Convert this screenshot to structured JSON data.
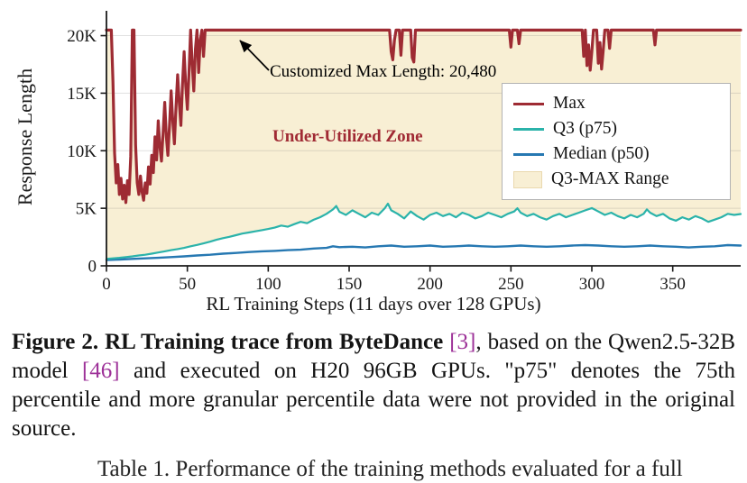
{
  "chart_data": {
    "type": "line",
    "title": "",
    "xlabel": "RL Training Steps (11 days over 128 GPUs)",
    "ylabel": "Response Length",
    "xlim": [
      0,
      392
    ],
    "ylim": [
      0,
      22000
    ],
    "xticks": [
      0,
      50,
      100,
      150,
      200,
      250,
      300,
      350
    ],
    "yticks": [
      {
        "v": 0,
        "label": "0"
      },
      {
        "v": 5000,
        "label": "5K"
      },
      {
        "v": 10000,
        "label": "10K"
      },
      {
        "v": 15000,
        "label": "15K"
      },
      {
        "v": 20000,
        "label": "20K"
      }
    ],
    "grid": "faint-horizontal",
    "annotation": "Customized Max Length: 20,480",
    "max_length": 20480,
    "zone_label": "Under-Utilized Zone",
    "zone_color": "#a02a34",
    "range_fill": "#f8efd4",
    "fill_between": [
      "Q3 (p75)",
      "Max"
    ],
    "legend_position": "upper-right",
    "legend": [
      {
        "label": "Max",
        "type": "line",
        "color": "#9e2b33"
      },
      {
        "label": "Q3 (p75)",
        "type": "line",
        "color": "#2bb3aa"
      },
      {
        "label": "Median (p50)",
        "type": "line",
        "color": "#2678b2"
      },
      {
        "label": "Q3-MAX Range",
        "type": "patch",
        "color": "#f8efd4"
      }
    ],
    "series": [
      {
        "name": "Max",
        "color": "#9e2b33",
        "width": 3.2,
        "points": [
          [
            0,
            20480
          ],
          [
            3,
            20480
          ],
          [
            4,
            16000
          ],
          [
            5,
            9800
          ],
          [
            6,
            7200
          ],
          [
            7,
            8800
          ],
          [
            8,
            6200
          ],
          [
            9,
            7600
          ],
          [
            10,
            5800
          ],
          [
            11,
            7000
          ],
          [
            12,
            5500
          ],
          [
            13,
            7400
          ],
          [
            14,
            6200
          ],
          [
            15,
            9500
          ],
          [
            16,
            20480
          ],
          [
            17,
            20480
          ],
          [
            18,
            10500
          ],
          [
            19,
            7200
          ],
          [
            20,
            6200
          ],
          [
            21,
            7800
          ],
          [
            22,
            6400
          ],
          [
            23,
            5700
          ],
          [
            24,
            7200
          ],
          [
            25,
            6300
          ],
          [
            26,
            8600
          ],
          [
            27,
            7100
          ],
          [
            28,
            9600
          ],
          [
            29,
            8100
          ],
          [
            30,
            11200
          ],
          [
            31,
            9200
          ],
          [
            32,
            12600
          ],
          [
            33,
            10400
          ],
          [
            34,
            9100
          ],
          [
            35,
            11600
          ],
          [
            36,
            14200
          ],
          [
            37,
            11200
          ],
          [
            38,
            9600
          ],
          [
            39,
            12200
          ],
          [
            40,
            15200
          ],
          [
            41,
            12600
          ],
          [
            42,
            10600
          ],
          [
            43,
            13800
          ],
          [
            44,
            16600
          ],
          [
            45,
            14200
          ],
          [
            46,
            12200
          ],
          [
            47,
            15800
          ],
          [
            48,
            18600
          ],
          [
            49,
            15600
          ],
          [
            50,
            13600
          ],
          [
            51,
            16800
          ],
          [
            52,
            20480
          ],
          [
            53,
            17600
          ],
          [
            54,
            15200
          ],
          [
            55,
            18800
          ],
          [
            56,
            20480
          ],
          [
            57,
            16800
          ],
          [
            58,
            19600
          ],
          [
            59,
            20480
          ],
          [
            60,
            18200
          ],
          [
            61,
            20480
          ],
          [
            64,
            20480
          ],
          [
            175,
            20480
          ],
          [
            176,
            18600
          ],
          [
            177,
            17900
          ],
          [
            178,
            19600
          ],
          [
            179,
            20480
          ],
          [
            181,
            20480
          ],
          [
            182,
            18300
          ],
          [
            183,
            20480
          ],
          [
            188,
            20480
          ],
          [
            189,
            18100
          ],
          [
            190,
            17700
          ],
          [
            191,
            20480
          ],
          [
            249,
            20480
          ],
          [
            250,
            19000
          ],
          [
            251,
            20480
          ],
          [
            254,
            20480
          ],
          [
            255,
            19300
          ],
          [
            256,
            20480
          ],
          [
            294,
            20480
          ],
          [
            295,
            18200
          ],
          [
            296,
            20480
          ],
          [
            297,
            17400
          ],
          [
            298,
            19200
          ],
          [
            299,
            17000
          ],
          [
            300,
            18600
          ],
          [
            301,
            20480
          ],
          [
            303,
            20480
          ],
          [
            304,
            17600
          ],
          [
            305,
            19400
          ],
          [
            306,
            17100
          ],
          [
            307,
            18700
          ],
          [
            308,
            20480
          ],
          [
            310,
            20480
          ],
          [
            311,
            18900
          ],
          [
            312,
            20480
          ],
          [
            338,
            20480
          ],
          [
            339,
            19200
          ],
          [
            340,
            20480
          ],
          [
            392,
            20480
          ]
        ]
      },
      {
        "name": "Q3 (p75)",
        "color": "#2bb3aa",
        "width": 2.2,
        "points": [
          [
            0,
            600
          ],
          [
            4,
            650
          ],
          [
            8,
            700
          ],
          [
            12,
            760
          ],
          [
            16,
            820
          ],
          [
            20,
            900
          ],
          [
            24,
            960
          ],
          [
            28,
            1060
          ],
          [
            32,
            1160
          ],
          [
            36,
            1260
          ],
          [
            40,
            1360
          ],
          [
            44,
            1460
          ],
          [
            48,
            1560
          ],
          [
            52,
            1700
          ],
          [
            56,
            1820
          ],
          [
            60,
            1950
          ],
          [
            64,
            2100
          ],
          [
            68,
            2260
          ],
          [
            72,
            2400
          ],
          [
            76,
            2520
          ],
          [
            80,
            2660
          ],
          [
            84,
            2800
          ],
          [
            88,
            2900
          ],
          [
            92,
            3000
          ],
          [
            96,
            3100
          ],
          [
            100,
            3200
          ],
          [
            104,
            3320
          ],
          [
            108,
            3500
          ],
          [
            112,
            3400
          ],
          [
            116,
            3620
          ],
          [
            120,
            3820
          ],
          [
            124,
            3700
          ],
          [
            128,
            4000
          ],
          [
            132,
            4220
          ],
          [
            136,
            4520
          ],
          [
            140,
            4900
          ],
          [
            142,
            5200
          ],
          [
            144,
            4700
          ],
          [
            148,
            4420
          ],
          [
            152,
            4820
          ],
          [
            156,
            4520
          ],
          [
            160,
            4220
          ],
          [
            164,
            4620
          ],
          [
            168,
            4420
          ],
          [
            172,
            5000
          ],
          [
            174,
            5400
          ],
          [
            176,
            4820
          ],
          [
            180,
            4520
          ],
          [
            184,
            4120
          ],
          [
            188,
            4720
          ],
          [
            192,
            4320
          ],
          [
            196,
            4020
          ],
          [
            200,
            4420
          ],
          [
            204,
            4620
          ],
          [
            208,
            4320
          ],
          [
            212,
            4520
          ],
          [
            216,
            4220
          ],
          [
            220,
            4620
          ],
          [
            224,
            4420
          ],
          [
            228,
            4120
          ],
          [
            232,
            4320
          ],
          [
            236,
            4620
          ],
          [
            240,
            4420
          ],
          [
            244,
            4220
          ],
          [
            248,
            4520
          ],
          [
            252,
            4720
          ],
          [
            254,
            5000
          ],
          [
            256,
            4620
          ],
          [
            260,
            4320
          ],
          [
            264,
            4520
          ],
          [
            268,
            4220
          ],
          [
            272,
            4020
          ],
          [
            276,
            4320
          ],
          [
            280,
            4520
          ],
          [
            284,
            4220
          ],
          [
            288,
            4420
          ],
          [
            292,
            4620
          ],
          [
            296,
            4820
          ],
          [
            300,
            5020
          ],
          [
            304,
            4720
          ],
          [
            308,
            4420
          ],
          [
            312,
            4620
          ],
          [
            316,
            4320
          ],
          [
            320,
            4120
          ],
          [
            324,
            4420
          ],
          [
            328,
            4220
          ],
          [
            332,
            4520
          ],
          [
            334,
            4900
          ],
          [
            336,
            4620
          ],
          [
            340,
            4320
          ],
          [
            344,
            4520
          ],
          [
            348,
            4120
          ],
          [
            352,
            3920
          ],
          [
            356,
            4220
          ],
          [
            360,
            4020
          ],
          [
            364,
            4320
          ],
          [
            368,
            4120
          ],
          [
            372,
            3820
          ],
          [
            376,
            4020
          ],
          [
            380,
            4220
          ],
          [
            384,
            4520
          ],
          [
            388,
            4420
          ],
          [
            392,
            4500
          ]
        ]
      },
      {
        "name": "Median (p50)",
        "color": "#2678b2",
        "width": 2.4,
        "points": [
          [
            0,
            500
          ],
          [
            8,
            550
          ],
          [
            16,
            600
          ],
          [
            24,
            650
          ],
          [
            32,
            700
          ],
          [
            40,
            760
          ],
          [
            48,
            820
          ],
          [
            56,
            900
          ],
          [
            64,
            960
          ],
          [
            72,
            1060
          ],
          [
            80,
            1120
          ],
          [
            88,
            1200
          ],
          [
            96,
            1260
          ],
          [
            104,
            1300
          ],
          [
            112,
            1360
          ],
          [
            120,
            1400
          ],
          [
            128,
            1500
          ],
          [
            136,
            1560
          ],
          [
            140,
            1700
          ],
          [
            144,
            1620
          ],
          [
            152,
            1660
          ],
          [
            160,
            1600
          ],
          [
            168,
            1700
          ],
          [
            176,
            1760
          ],
          [
            184,
            1660
          ],
          [
            192,
            1700
          ],
          [
            200,
            1760
          ],
          [
            208,
            1660
          ],
          [
            216,
            1700
          ],
          [
            224,
            1760
          ],
          [
            232,
            1700
          ],
          [
            240,
            1660
          ],
          [
            248,
            1700
          ],
          [
            256,
            1760
          ],
          [
            264,
            1700
          ],
          [
            272,
            1660
          ],
          [
            280,
            1700
          ],
          [
            288,
            1760
          ],
          [
            296,
            1800
          ],
          [
            304,
            1760
          ],
          [
            312,
            1700
          ],
          [
            320,
            1660
          ],
          [
            328,
            1700
          ],
          [
            336,
            1760
          ],
          [
            344,
            1700
          ],
          [
            352,
            1660
          ],
          [
            360,
            1600
          ],
          [
            368,
            1660
          ],
          [
            376,
            1700
          ],
          [
            384,
            1800
          ],
          [
            392,
            1760
          ]
        ]
      }
    ]
  },
  "caption": {
    "citation_color": "#9d3198",
    "segments": [
      {
        "text": "Figure 2. RL Training trace from ByteDance ",
        "style": "bold"
      },
      {
        "text": "[3]",
        "style": "citation"
      },
      {
        "text": ", based on the Qwen2.5-32B model ",
        "style": "normal"
      },
      {
        "text": "[46]",
        "style": "citation"
      },
      {
        "text": " and executed on H20 96GB GPUs. \"p75\" denotes the 75th percentile and more granular percentile data were not provided in the original source.",
        "style": "normal"
      }
    ]
  },
  "partial_caption": "Table 1. Performance of the training methods evaluated for a full"
}
